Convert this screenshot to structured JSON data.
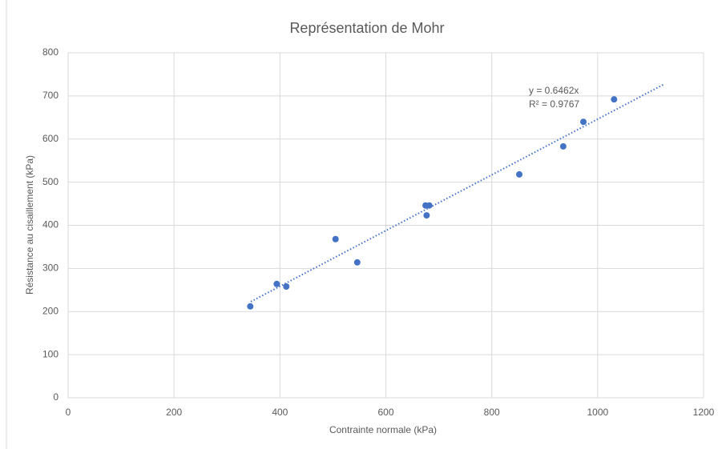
{
  "chart_data": {
    "type": "scatter",
    "title": "Représentation de Mohr",
    "x_label": "Contrainte normale (kPa)",
    "y_label": "Résistance au cisaillement (kPa)",
    "series": [
      {
        "color": "#4472c4",
        "x": [
          344,
          394,
          412,
          505,
          546,
          675,
          682,
          677,
          852,
          935,
          973,
          1031
        ],
        "values": [
          212,
          264,
          258,
          368,
          314,
          446,
          446,
          423,
          518,
          583,
          640,
          692
        ]
      }
    ],
    "trendline": {
      "slope": 0.6462,
      "x": [
        345,
        1126
      ],
      "equation": "y = 0.6462x",
      "r2": "R² = 0.9767",
      "color": "#4472c4"
    },
    "xlim": [
      0,
      1200
    ],
    "xticks": [
      0,
      200,
      400,
      600,
      800,
      1000,
      1200
    ],
    "ylim": [
      0,
      800
    ],
    "yticks": [
      0,
      100,
      200,
      300,
      400,
      500,
      600,
      700,
      800
    ],
    "grid": true
  }
}
